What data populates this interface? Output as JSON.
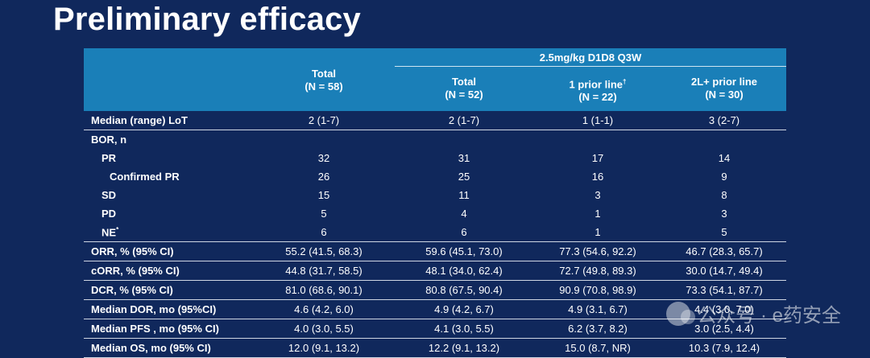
{
  "title": "Preliminary efficacy",
  "header": {
    "total_label": "Total",
    "total_n": "(N = 58)",
    "group_label": "2.5mg/kg D1D8 Q3W",
    "sub_total_label": "Total",
    "sub_total_n": "(N = 52)",
    "prior1_label": "1 prior line",
    "prior1_sup": "†",
    "prior1_n": "(N = 22)",
    "prior2_label": "2L+ prior line",
    "prior2_n": "(N = 30)"
  },
  "rows": [
    {
      "label": "Median (range) LoT",
      "v": [
        "2 (1-7)",
        "2 (1-7)",
        "1 (1-1)",
        "3 (2-7)"
      ]
    },
    {
      "label": "BOR, n",
      "v": [
        "",
        "",
        "",
        ""
      ]
    },
    {
      "label": "PR",
      "v": [
        "32",
        "31",
        "17",
        "14"
      ]
    },
    {
      "label": "Confirmed PR",
      "v": [
        "26",
        "25",
        "16",
        "9"
      ]
    },
    {
      "label": "SD",
      "v": [
        "15",
        "11",
        "3",
        "8"
      ]
    },
    {
      "label": "PD",
      "v": [
        "5",
        "4",
        "1",
        "3"
      ]
    },
    {
      "label": "NE",
      "sup": "*",
      "v": [
        "6",
        "6",
        "1",
        "5"
      ]
    },
    {
      "label": "ORR, % (95% CI)",
      "v": [
        "55.2 (41.5, 68.3)",
        "59.6 (45.1, 73.0)",
        "77.3 (54.6, 92.2)",
        "46.7 (28.3, 65.7)"
      ]
    },
    {
      "label": "cORR, % (95% CI)",
      "v": [
        "44.8 (31.7, 58.5)",
        "48.1 (34.0, 62.4)",
        "72.7 (49.8, 89.3)",
        "30.0 (14.7, 49.4)"
      ]
    },
    {
      "label": "DCR, % (95% CI)",
      "v": [
        "81.0 (68.6, 90.1)",
        "80.8 (67.5, 90.4)",
        "90.9 (70.8, 98.9)",
        "73.3 (54.1, 87.7)"
      ]
    },
    {
      "label": "Median DOR, mo (95%CI)",
      "v": [
        "4.6 (4.2, 6.0)",
        "4.9 (4.2, 6.7)",
        "4.9 (3.1, 6.7)",
        "4.4 (3.0, 7.0)"
      ]
    },
    {
      "label": "Median PFS , mo (95% CI)",
      "v": [
        "4.0 (3.0, 5.5)",
        "4.1 (3.0, 5.5)",
        "6.2 (3.7, 8.2)",
        "3.0 (2.5, 4.4)"
      ]
    },
    {
      "label": "Median OS, mo (95% CI)",
      "v": [
        "12.0 (9.1, 13.2)",
        "12.2 (9.1, 13.2)",
        "15.0 (8.7, NR)",
        "10.3 (7.9, 12.4)"
      ]
    }
  ],
  "watermark": {
    "text": "公众号 · e药安全",
    "icon": "wechat-icon"
  }
}
